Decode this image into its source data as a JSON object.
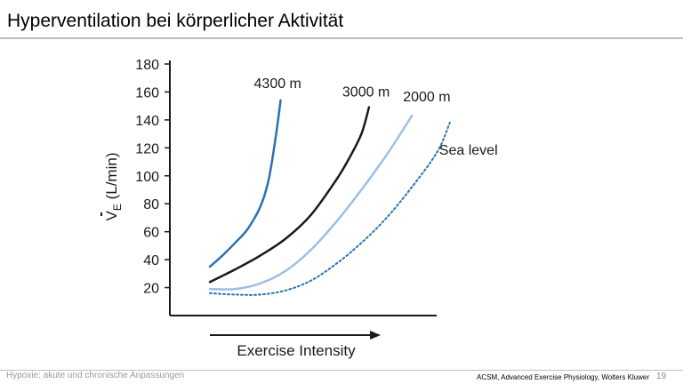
{
  "slide": {
    "title": "Hyperventilation bei körperlicher Aktivität"
  },
  "footer": {
    "topic": "Hypoxie: akute und chronische Anpassungen",
    "source": "ACSM, Advanced Exercise Physiology, Wolters Kluwer",
    "page_number": "19"
  },
  "colors": {
    "axis": "#1a1a1a",
    "4300m": "#2b72b0",
    "3000m": "#1a1a1a",
    "2000m": "#9dbfe6",
    "sea_level": "#2b72b0"
  },
  "chart_data": {
    "type": "line",
    "title": "",
    "xlabel": "Exercise Intensity",
    "ylabel_main": "V",
    "ylabel_sub": "E",
    "ylabel_rest": " (L/min)",
    "ylim": [
      0,
      180
    ],
    "x_scale": "relative intensity, no numeric ticks",
    "xlim": [
      0,
      100
    ],
    "yticks": [
      20,
      40,
      60,
      80,
      100,
      120,
      140,
      160,
      180
    ],
    "grid": false,
    "legend": "labels at line ends",
    "series": [
      {
        "name": "4300 m",
        "style": "solid",
        "color_key": "4300m",
        "x": [
          0,
          5,
          10,
          15,
          20,
          23,
          25,
          27,
          28
        ],
        "y": [
          35,
          43,
          52,
          62,
          78,
          95,
          115,
          140,
          154
        ]
      },
      {
        "name": "3000 m",
        "style": "solid",
        "color_key": "3000m",
        "x": [
          0,
          10,
          20,
          30,
          40,
          50,
          55,
          60,
          63
        ],
        "y": [
          24,
          33,
          43,
          55,
          72,
          97,
          112,
          130,
          149
        ]
      },
      {
        "name": "2000 m",
        "style": "solid",
        "color_key": "2000m",
        "x": [
          0,
          10,
          20,
          30,
          40,
          50,
          60,
          70,
          80
        ],
        "y": [
          19,
          19,
          23,
          32,
          47,
          67,
          90,
          115,
          143
        ]
      },
      {
        "name": "Sea level",
        "style": "dotted",
        "color_key": "sea_level",
        "x": [
          0,
          10,
          20,
          30,
          40,
          50,
          60,
          70,
          80,
          90,
          95
        ],
        "y": [
          16,
          15,
          15,
          18,
          25,
          37,
          52,
          70,
          92,
          117,
          138
        ]
      }
    ]
  }
}
